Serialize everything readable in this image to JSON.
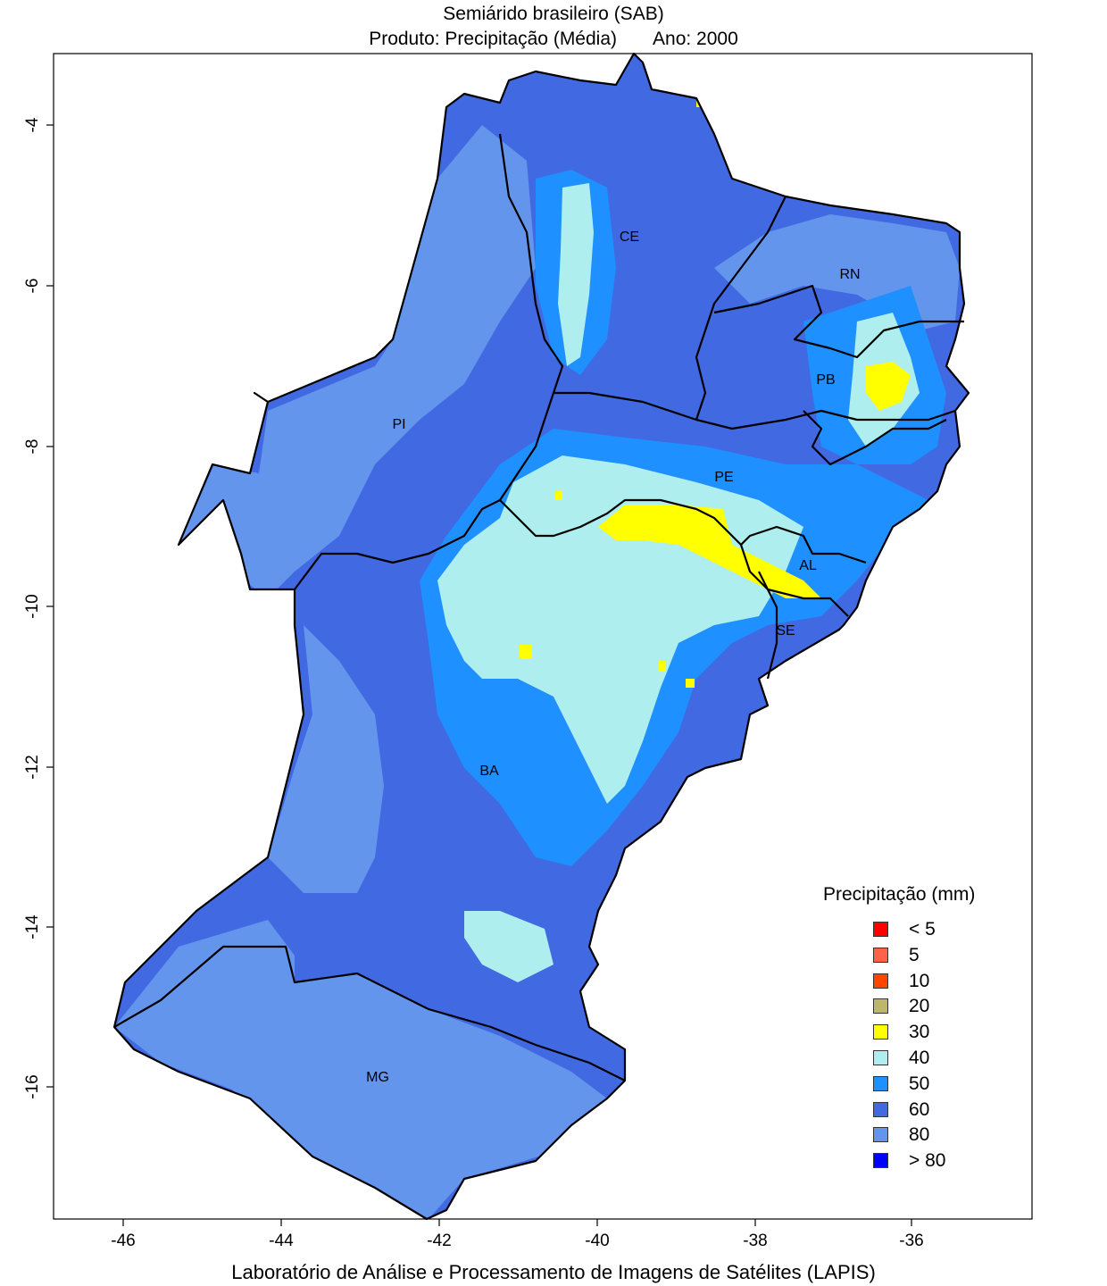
{
  "header": {
    "title": "Semiárido brasileiro (SAB)",
    "product_label": "Produto: Precipitação (Média)",
    "year_label": "Ano:  2000"
  },
  "footer": {
    "credit": "Laboratório de Análise e Processamento de Imagens de Satélites (LAPIS)"
  },
  "map": {
    "x_ticks": [
      "-46",
      "-44",
      "-42",
      "-40",
      "-38",
      "-36"
    ],
    "y_ticks": [
      "-4",
      "-6",
      "-8",
      "-10",
      "-12",
      "-14",
      "-16"
    ],
    "state_labels": [
      "CE",
      "RN",
      "PB",
      "PI",
      "PE",
      "AL",
      "SE",
      "BA",
      "MG"
    ]
  },
  "legend": {
    "title": "Precipitação (mm)",
    "items": [
      {
        "label": "< 5",
        "color": "#ff0000"
      },
      {
        "label": "5",
        "color": "#ff6347"
      },
      {
        "label": "10",
        "color": "#ff4500"
      },
      {
        "label": "20",
        "color": "#bdb76b"
      },
      {
        "label": "30",
        "color": "#ffff00"
      },
      {
        "label": "40",
        "color": "#aeeeee"
      },
      {
        "label": "50",
        "color": "#1e90ff"
      },
      {
        "label": "60",
        "color": "#4169e1"
      },
      {
        "label": "80",
        "color": "#6495ed"
      },
      {
        "label": "> 80",
        "color": "#0000ff"
      }
    ]
  }
}
